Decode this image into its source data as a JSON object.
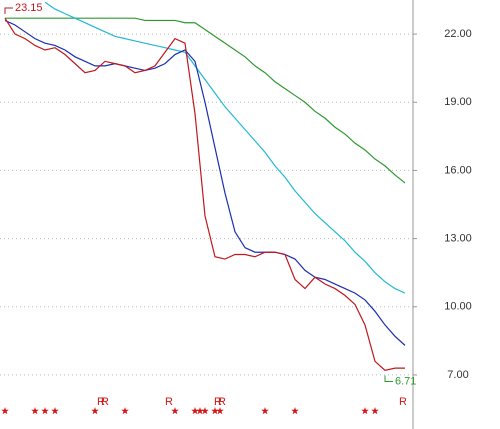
{
  "chart_data": {
    "type": "line",
    "categories": [
      null,
      null,
      null,
      null,
      null,
      null,
      null,
      null,
      null,
      null,
      null,
      null,
      null,
      null,
      null,
      null,
      null,
      null,
      null,
      null,
      null,
      null,
      null,
      null,
      null,
      null,
      null,
      null,
      null,
      null,
      null,
      null,
      null,
      null,
      null,
      null,
      null,
      null,
      null,
      null,
      null
    ],
    "series": [
      {
        "name": null,
        "color": "#2e9a2e",
        "values": [
          22.7,
          22.7,
          22.7,
          22.7,
          22.7,
          22.7,
          22.7,
          22.7,
          22.7,
          22.7,
          22.7,
          22.7,
          22.7,
          22.7,
          22.6,
          22.6,
          22.6,
          22.6,
          22.5,
          22.5,
          22.2,
          21.9,
          21.6,
          21.3,
          21.0,
          20.6,
          20.3,
          19.9,
          19.6,
          19.3,
          19.0,
          18.6,
          18.3,
          17.9,
          17.6,
          17.2,
          16.9,
          16.5,
          16.2,
          15.8,
          15.45
        ]
      },
      {
        "name": null,
        "color": "#22b8d8",
        "values": [
          null,
          null,
          null,
          null,
          23.4,
          23.1,
          22.9,
          22.7,
          22.5,
          22.3,
          22.1,
          21.9,
          21.8,
          21.7,
          21.6,
          21.5,
          21.4,
          21.3,
          21.2,
          20.6,
          20.0,
          19.4,
          18.8,
          18.3,
          17.8,
          17.3,
          16.8,
          16.2,
          15.7,
          15.1,
          14.6,
          14.1,
          13.7,
          13.3,
          12.9,
          12.4,
          12.0,
          11.5,
          11.1,
          10.8,
          10.6
        ]
      },
      {
        "name": null,
        "color": "#1a2fb0",
        "values": [
          22.6,
          22.4,
          22.1,
          21.8,
          21.6,
          21.5,
          21.3,
          21.0,
          20.8,
          20.6,
          20.6,
          20.7,
          20.6,
          20.5,
          20.4,
          20.5,
          20.7,
          21.1,
          21.3,
          20.8,
          19.0,
          17.0,
          15.0,
          13.3,
          12.6,
          12.4,
          12.4,
          12.4,
          12.3,
          12.1,
          11.6,
          11.3,
          11.2,
          11.0,
          10.8,
          10.6,
          10.3,
          9.8,
          9.2,
          8.7,
          8.3
        ]
      },
      {
        "name": null,
        "color": "#c0181e",
        "values": [
          22.7,
          22.0,
          21.8,
          21.5,
          21.3,
          21.4,
          21.1,
          20.7,
          20.3,
          20.4,
          20.8,
          20.7,
          20.6,
          20.3,
          20.4,
          20.6,
          21.2,
          21.8,
          21.6,
          18.5,
          14.0,
          12.2,
          12.1,
          12.3,
          12.3,
          12.2,
          12.4,
          12.4,
          12.3,
          11.2,
          10.8,
          11.3,
          11.0,
          10.8,
          10.5,
          10.1,
          9.2,
          7.6,
          7.2,
          7.3,
          7.3
        ]
      }
    ],
    "ylim": [
      4.62,
      23.5
    ],
    "yticks": [
      {
        "value": 7,
        "label": "7.00"
      },
      {
        "value": 10,
        "label": "10.00"
      },
      {
        "value": 13,
        "label": "13.00"
      },
      {
        "value": 16,
        "label": "16.00"
      },
      {
        "value": 19,
        "label": "19.00"
      },
      {
        "value": 22,
        "label": "22.00"
      }
    ],
    "grid": true,
    "annotations": [
      {
        "index": 0,
        "value": 23.15,
        "label": "23.15",
        "color": "#c0181e"
      },
      {
        "index": 38,
        "value": 6.71,
        "label": "6.71",
        "color": "#2e9a2e"
      }
    ],
    "star_markers": [
      0,
      3,
      4,
      5,
      9,
      12,
      17,
      19,
      19.5,
      20,
      21,
      21.5,
      26,
      29,
      36,
      37
    ],
    "r_markers": [
      {
        "index": 9.6,
        "label": "R"
      },
      {
        "index": 10,
        "label": "R"
      },
      {
        "index": 16.4,
        "label": "R"
      },
      {
        "index": 21.3,
        "label": "R"
      },
      {
        "index": 21.7,
        "label": "R"
      },
      {
        "index": 39.8,
        "label": "R"
      }
    ]
  }
}
